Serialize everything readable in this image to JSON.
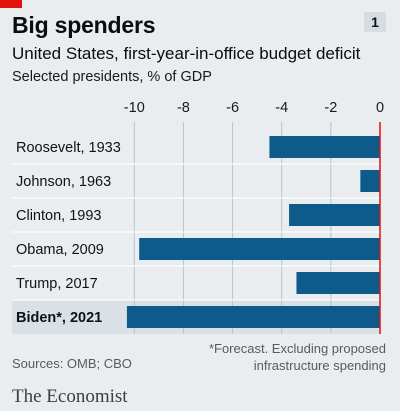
{
  "header": {
    "title": "Big spenders",
    "badge": "1",
    "subtitle": "United States, first-year-in-office budget deficit",
    "subtitle2": "Selected presidents, % of GDP"
  },
  "footer": {
    "sources": "Sources: OMB; CBO",
    "note_line1": "*Forecast. Excluding proposed",
    "note_line2": "infrastructure spending",
    "brand": "The Economist"
  },
  "colors": {
    "bar": "#0c5b8a",
    "zero_line": "#e3120b",
    "grid": "#b8c3cb",
    "highlight_row": "#d9e1e6"
  },
  "chart_data": {
    "type": "bar",
    "orientation": "horizontal",
    "categories": [
      "Roosevelt, 1933",
      "Johnson, 1963",
      "Clinton, 1993",
      "Obama, 2009",
      "Trump, 2017",
      "Biden*, 2021"
    ],
    "values": [
      -4.5,
      -0.8,
      -3.7,
      -9.8,
      -3.4,
      -10.3
    ],
    "highlight_index": 5,
    "xlim": [
      -10.5,
      0
    ],
    "xticks": [
      -10,
      -8,
      -6,
      -4,
      -2,
      0
    ],
    "axis_position": "top",
    "grid": true
  }
}
